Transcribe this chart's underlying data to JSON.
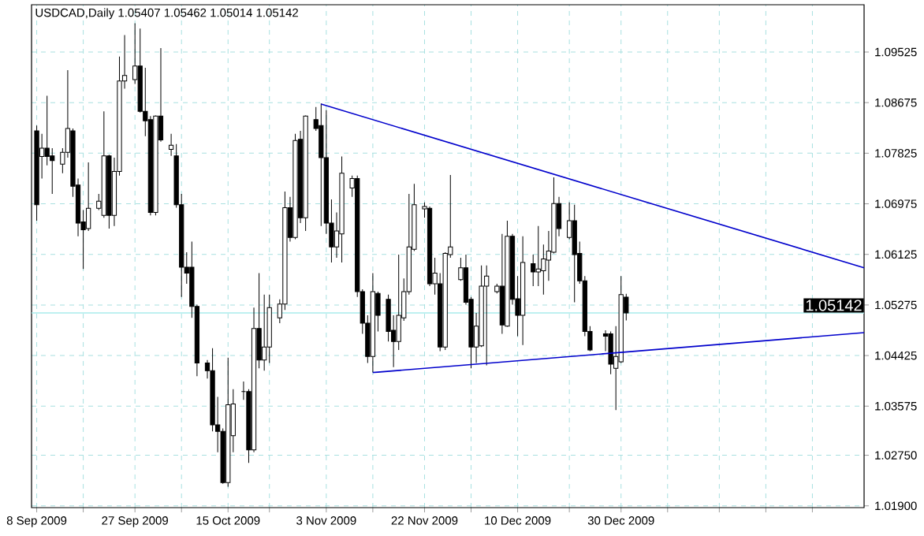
{
  "chart_data": {
    "type": "candlestick",
    "title": "USDCAD,Daily 1.05407 1.05462 1.05014 1.05142",
    "x": [
      "2009-09-08",
      "2009-09-09",
      "2009-09-10",
      "2009-09-11",
      "2009-09-13",
      "2009-09-14",
      "2009-09-15",
      "2009-09-16",
      "2009-09-17",
      "2009-09-18",
      "2009-09-20",
      "2009-09-21",
      "2009-09-22",
      "2009-09-23",
      "2009-09-24",
      "2009-09-25",
      "2009-09-27",
      "2009-09-28",
      "2009-09-29",
      "2009-09-30",
      "2009-10-01",
      "2009-10-02",
      "2009-10-04",
      "2009-10-05",
      "2009-10-06",
      "2009-10-07",
      "2009-10-08",
      "2009-10-09",
      "2009-10-11",
      "2009-10-12",
      "2009-10-13",
      "2009-10-14",
      "2009-10-15",
      "2009-10-16",
      "2009-10-18",
      "2009-10-19",
      "2009-10-20",
      "2009-10-21",
      "2009-10-22",
      "2009-10-23",
      "2009-10-25",
      "2009-10-26",
      "2009-10-27",
      "2009-10-28",
      "2009-10-29",
      "2009-10-30",
      "2009-11-01",
      "2009-11-02",
      "2009-11-03",
      "2009-11-04",
      "2009-11-05",
      "2009-11-06",
      "2009-11-08",
      "2009-11-09",
      "2009-11-10",
      "2009-11-11",
      "2009-11-12",
      "2009-11-13",
      "2009-11-15",
      "2009-11-16",
      "2009-11-17",
      "2009-11-18",
      "2009-11-19",
      "2009-11-20",
      "2009-11-22",
      "2009-11-23",
      "2009-11-24",
      "2009-11-25",
      "2009-11-26",
      "2009-11-27",
      "2009-11-29",
      "2009-11-30",
      "2009-12-01",
      "2009-12-02",
      "2009-12-03",
      "2009-12-04",
      "2009-12-06",
      "2009-12-07",
      "2009-12-08",
      "2009-12-09",
      "2009-12-10",
      "2009-12-11",
      "2009-12-13",
      "2009-12-14",
      "2009-12-15",
      "2009-12-16",
      "2009-12-17",
      "2009-12-18",
      "2009-12-20",
      "2009-12-21",
      "2009-12-22",
      "2009-12-23",
      "2009-12-24",
      "2009-12-27",
      "2009-12-28",
      "2009-12-29",
      "2009-12-30",
      "2009-12-31"
    ],
    "ohlc": [
      [
        1.082,
        1.0829,
        1.0669,
        1.0696
      ],
      [
        1.0777,
        1.0815,
        1.074,
        1.0791
      ],
      [
        1.0791,
        1.0879,
        1.0762,
        1.0777
      ],
      [
        1.0778,
        1.0791,
        1.0714,
        1.077
      ],
      [
        1.0764,
        1.0791,
        1.0749,
        1.0784
      ],
      [
        1.0784,
        1.0922,
        1.0775,
        1.0824
      ],
      [
        1.082,
        1.0824,
        1.0709,
        1.0727
      ],
      [
        1.0729,
        1.074,
        1.0643,
        1.0665
      ],
      [
        1.0667,
        1.0687,
        1.0588,
        1.0654
      ],
      [
        1.0656,
        1.0767,
        1.0652,
        1.069
      ],
      [
        1.069,
        1.0714,
        1.0687,
        1.0702
      ],
      [
        1.0678,
        1.0853,
        1.0674,
        1.0778
      ],
      [
        1.0778,
        1.078,
        1.0656,
        1.0678
      ],
      [
        1.0678,
        1.0775,
        1.066,
        1.0752
      ],
      [
        1.0752,
        1.0945,
        1.0745,
        1.0904
      ],
      [
        1.0904,
        1.0981,
        1.0891,
        1.0913
      ],
      [
        1.0906,
        1.1001,
        1.0899,
        1.0929
      ],
      [
        1.0929,
        1.0992,
        1.0851,
        1.0853
      ],
      [
        1.0853,
        1.0926,
        1.0811,
        1.0837
      ],
      [
        1.0839,
        1.0845,
        1.0678,
        1.0683
      ],
      [
        1.0683,
        1.0846,
        1.0678,
        1.0845
      ],
      [
        1.0845,
        1.0959,
        1.0802,
        1.0805
      ],
      [
        1.0789,
        1.0815,
        1.0778,
        1.0796
      ],
      [
        1.0778,
        1.0798,
        1.0691,
        1.0696
      ],
      [
        1.0696,
        1.0714,
        1.0541,
        1.0591
      ],
      [
        1.0591,
        1.0616,
        1.0563,
        1.0581
      ],
      [
        1.0591,
        1.0634,
        1.0506,
        1.0525
      ],
      [
        1.0525,
        1.0528,
        1.0408,
        1.043
      ],
      [
        1.043,
        1.0435,
        1.0404,
        1.0417
      ],
      [
        1.0417,
        1.0455,
        1.0315,
        1.0326
      ],
      [
        1.0326,
        1.0373,
        1.028,
        1.0315
      ],
      [
        1.0315,
        1.032,
        1.0227,
        1.0229
      ],
      [
        1.0229,
        1.0439,
        1.0222,
        1.036
      ],
      [
        1.0308,
        1.0386,
        1.028,
        1.0361
      ],
      [
        1.0382,
        1.0399,
        1.0368,
        1.0382
      ],
      [
        1.0382,
        1.0386,
        1.0262,
        1.0284
      ],
      [
        1.0284,
        1.0523,
        1.028,
        1.0488
      ],
      [
        1.0488,
        1.0581,
        1.0421,
        1.0435
      ],
      [
        1.0435,
        1.0545,
        1.0417,
        1.0457
      ],
      [
        1.0457,
        1.0545,
        1.043,
        1.0523
      ],
      [
        1.0506,
        1.0537,
        1.0497,
        1.0529
      ],
      [
        1.0529,
        1.0718,
        1.0519,
        1.0691
      ],
      [
        1.0691,
        1.0709,
        1.0634,
        1.0641
      ],
      [
        1.0641,
        1.0815,
        1.0638,
        1.0804
      ],
      [
        1.0806,
        1.082,
        1.0665,
        1.0674
      ],
      [
        1.0674,
        1.0846,
        1.0652,
        1.0845
      ],
      [
        1.0839,
        1.086,
        1.082,
        1.0824
      ],
      [
        1.0829,
        1.0866,
        1.066,
        1.0775
      ],
      [
        1.0775,
        1.0855,
        1.0647,
        1.0665
      ],
      [
        1.0665,
        1.0705,
        1.0599,
        1.0625
      ],
      [
        1.0625,
        1.0683,
        1.0607,
        1.0652
      ],
      [
        1.0647,
        1.0777,
        1.0599,
        1.0749
      ],
      [
        1.0724,
        1.0745,
        1.0709,
        1.074
      ],
      [
        1.074,
        1.0745,
        1.0541,
        1.055
      ],
      [
        1.055,
        1.0554,
        1.0479,
        1.0497
      ],
      [
        1.0497,
        1.051,
        1.043,
        1.0441
      ],
      [
        1.0441,
        1.0581,
        1.0414,
        1.055
      ],
      [
        1.0547,
        1.055,
        1.0483,
        1.051
      ],
      [
        1.0537,
        1.0545,
        1.0466,
        1.0483
      ],
      [
        1.0485,
        1.051,
        1.0423,
        1.0466
      ],
      [
        1.0466,
        1.0612,
        1.0452,
        1.051
      ],
      [
        1.0506,
        1.0572,
        1.0501,
        1.055
      ],
      [
        1.055,
        1.0714,
        1.0545,
        1.0625
      ],
      [
        1.0621,
        1.0731,
        1.0618,
        1.0696
      ],
      [
        1.0689,
        1.07,
        1.0674,
        1.0693
      ],
      [
        1.069,
        1.0693,
        1.0559,
        1.0563
      ],
      [
        1.0563,
        1.0607,
        1.0545,
        1.0581
      ],
      [
        1.0563,
        1.0581,
        1.045,
        1.0457
      ],
      [
        1.0457,
        1.0616,
        1.0452,
        1.0614
      ],
      [
        1.0612,
        1.0746,
        1.0607,
        1.0625
      ],
      [
        1.057,
        1.0607,
        1.0568,
        1.059
      ],
      [
        1.059,
        1.0612,
        1.0528,
        1.0532
      ],
      [
        1.0537,
        1.0541,
        1.0421,
        1.0457
      ],
      [
        1.0457,
        1.0514,
        1.043,
        1.0492
      ],
      [
        1.0459,
        1.0594,
        1.0457,
        1.0559
      ],
      [
        1.0559,
        1.0594,
        1.0426,
        1.0576
      ],
      [
        1.055,
        1.0563,
        1.0547,
        1.0559
      ],
      [
        1.0559,
        1.0647,
        1.0479,
        1.0494
      ],
      [
        1.0492,
        1.0669,
        1.0491,
        1.0643
      ],
      [
        1.0643,
        1.0647,
        1.0528,
        1.0537
      ],
      [
        1.0538,
        1.0576,
        1.0475,
        1.051
      ],
      [
        1.051,
        1.0643,
        1.046,
        1.0599
      ],
      [
        1.0597,
        1.0612,
        1.0559,
        1.0583
      ],
      [
        1.0583,
        1.066,
        1.0559,
        1.0588
      ],
      [
        1.0585,
        1.0629,
        1.0545,
        1.0605
      ],
      [
        1.0603,
        1.0652,
        1.0568,
        1.0618
      ],
      [
        1.0616,
        1.0742,
        1.0614,
        1.0698
      ],
      [
        1.0698,
        1.0709,
        1.0643,
        1.0656
      ],
      [
        1.0641,
        1.07,
        1.0638,
        1.0669
      ],
      [
        1.0669,
        1.0696,
        1.0532,
        1.0612
      ],
      [
        1.0614,
        1.0634,
        1.0563,
        1.0568
      ],
      [
        1.0568,
        1.0576,
        1.0475,
        1.0483
      ],
      [
        1.0483,
        1.0492,
        1.045,
        1.0452
      ],
      [
        1.0479,
        1.0485,
        1.045,
        1.0475
      ],
      [
        1.0479,
        1.0483,
        1.0411,
        1.0428
      ],
      [
        1.0421,
        1.0492,
        1.0351,
        1.0441
      ],
      [
        1.0432,
        1.0576,
        1.043,
        1.0545
      ],
      [
        1.05407,
        1.05462,
        1.05014,
        1.05142
      ]
    ],
    "series": [
      {
        "type": "line",
        "color": "#0000cc",
        "x": [
          "2009-11-02",
          "2010-02-15"
        ],
        "values": [
          1.0865,
          1.059
        ]
      },
      {
        "type": "line",
        "color": "#0000cc",
        "x": [
          "2009-11-12",
          "2010-02-15"
        ],
        "values": [
          1.0414,
          1.0481
        ]
      }
    ],
    "xlim": [
      "2009-09-07",
      "2010-02-15"
    ],
    "xticks": [
      {
        "value": "2009-09-08",
        "label": "8 Sep 2009"
      },
      {
        "value": "2009-09-17",
        "label": null
      },
      {
        "value": "2009-09-27",
        "label": "27 Sep 2009"
      },
      {
        "value": "2009-10-06",
        "label": null
      },
      {
        "value": "2009-10-15",
        "label": "15 Oct 2009"
      },
      {
        "value": "2009-10-23",
        "label": null
      },
      {
        "value": "2009-11-03",
        "label": "3 Nov 2009"
      },
      {
        "value": "2009-11-12",
        "label": null
      },
      {
        "value": "2009-11-22",
        "label": "22 Nov 2009"
      },
      {
        "value": "2009-12-01",
        "label": null
      },
      {
        "value": "2009-12-10",
        "label": "10 Dec 2009"
      },
      {
        "value": "2009-12-20",
        "label": null
      },
      {
        "value": "2009-12-30",
        "label": "30 Dec 2009"
      },
      {
        "value": "2010-01-08",
        "label": null
      },
      {
        "value": "2010-01-18",
        "label": null
      },
      {
        "value": "2010-01-27",
        "label": null
      },
      {
        "value": "2010-02-05",
        "label": null
      }
    ],
    "ylim": [
      1.0187,
      1.1032
    ],
    "yticks": [
      1.09525,
      1.08675,
      1.07825,
      1.06975,
      1.06125,
      1.05275,
      1.04425,
      1.03575,
      {
        "value": 1.0275,
        "label": "1.02750"
      },
      {
        "value": 1.019,
        "label": "1.01900"
      }
    ],
    "grid": true,
    "ref_lines": [
      {
        "axis": "y",
        "value": 1.05142,
        "label": "1.05142",
        "color": "#a8ecec"
      }
    ]
  }
}
